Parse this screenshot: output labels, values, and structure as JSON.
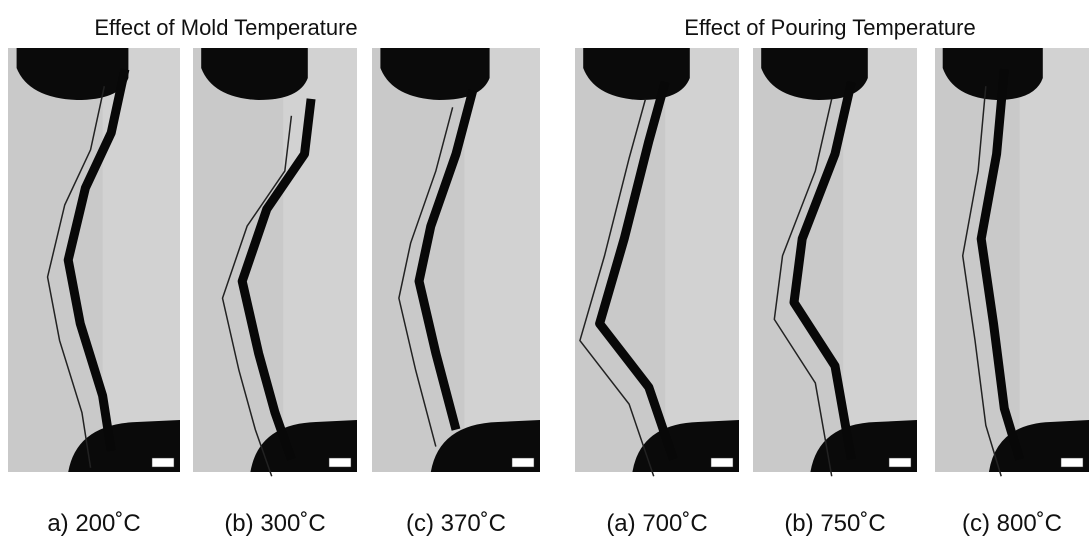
{
  "groups": [
    {
      "title": "Effect of Mold Temperature",
      "panels": [
        {
          "caption": "a) 200˚C"
        },
        {
          "caption": "(b) 300˚C"
        },
        {
          "caption": "(c) 370˚C"
        }
      ]
    },
    {
      "title": "Effect of Pouring Temperature",
      "panels": [
        {
          "caption": "(a) 700˚C"
        },
        {
          "caption": "(b) 750˚C"
        },
        {
          "caption": "(c) 800˚C"
        }
      ]
    }
  ]
}
